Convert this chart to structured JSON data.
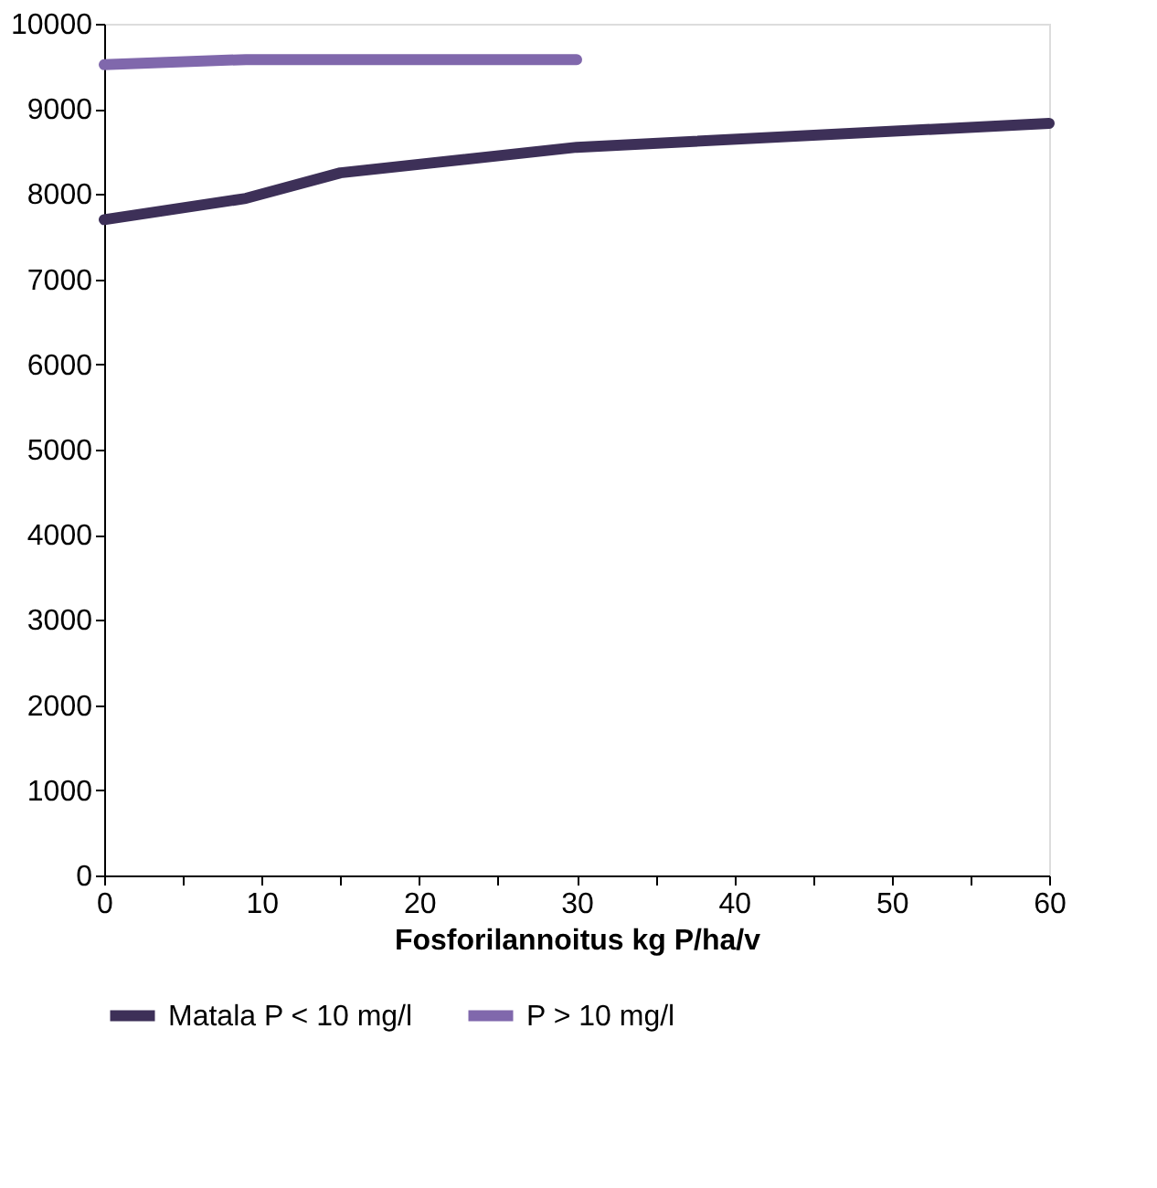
{
  "chart_data": {
    "type": "line",
    "xlabel": "Fosforilannoitus kg P/ha/v",
    "xlim": [
      0,
      60
    ],
    "xticks": [
      0,
      {
        "value": 5,
        "label": null
      },
      10,
      {
        "value": 15,
        "label": null
      },
      20,
      {
        "value": 25,
        "label": null
      },
      30,
      {
        "value": 35,
        "label": null
      },
      40,
      {
        "value": 45,
        "label": null
      },
      50,
      {
        "value": 55,
        "label": null
      },
      60
    ],
    "ylim": [
      0,
      10000
    ],
    "yticks": [
      0,
      1000,
      2000,
      3000,
      4000,
      5000,
      6000,
      7000,
      8000,
      9000,
      10000
    ],
    "grid": false,
    "legend": "bottom",
    "marker": "none",
    "line_style": "solid",
    "series": [
      {
        "name": "Matala P < 10 mg/l",
        "color": "#3d3058",
        "x": [
          0,
          9,
          15,
          30,
          60
        ],
        "values": [
          7700,
          7950,
          8250,
          8550,
          8830
        ]
      },
      {
        "name": "P > 10 mg/l",
        "color": "#8068ac",
        "x": [
          0,
          9,
          30
        ],
        "values": [
          9520,
          9580,
          9580
        ]
      }
    ]
  }
}
